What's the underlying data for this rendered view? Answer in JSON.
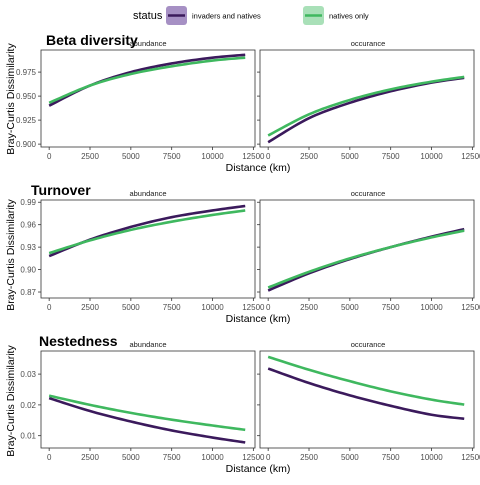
{
  "legend": {
    "title": "status",
    "items": [
      {
        "label": "invaders and natives",
        "color": "#3b1a5c",
        "fill": "#a690c4"
      },
      {
        "label": "natives only",
        "color": "#3fb85f",
        "fill": "#a9e0b8"
      }
    ]
  },
  "chart_data": [
    {
      "type": "line",
      "title": "Beta diversity",
      "ylabel": "Bray-Curtis Dissimilarity",
      "xlabel": "Distance (km)",
      "x_ticks": [
        0,
        2500,
        5000,
        7500,
        10000,
        12500
      ],
      "xlim": [
        -500,
        12600
      ],
      "panels": [
        {
          "strip": "abundance",
          "ylim": [
            0.897,
            0.998
          ],
          "y_ticks": [
            0.9,
            0.925,
            0.95,
            0.975
          ],
          "y_tick_labels": [
            "0.900",
            "0.925",
            "0.950",
            "0.975"
          ],
          "series": [
            {
              "name": "invaders and natives",
              "x": [
                0,
                2500,
                5000,
                7500,
                10000,
                12000
              ],
              "y": [
                0.94,
                0.961,
                0.975,
                0.984,
                0.99,
                0.993
              ]
            },
            {
              "name": "natives only",
              "x": [
                0,
                2500,
                5000,
                7500,
                10000,
                12000
              ],
              "y": [
                0.943,
                0.961,
                0.973,
                0.981,
                0.987,
                0.99
              ]
            }
          ]
        },
        {
          "strip": "occurance",
          "ylim": [
            0.897,
            0.998
          ],
          "y_ticks": [
            0.9,
            0.925,
            0.95,
            0.975
          ],
          "series": [
            {
              "name": "invaders and natives",
              "x": [
                0,
                2500,
                5000,
                7500,
                10000,
                12000
              ],
              "y": [
                0.902,
                0.927,
                0.943,
                0.955,
                0.964,
                0.969
              ]
            },
            {
              "name": "natives only",
              "x": [
                0,
                2500,
                5000,
                7500,
                10000,
                12000
              ],
              "y": [
                0.909,
                0.931,
                0.946,
                0.957,
                0.965,
                0.97
              ]
            }
          ]
        }
      ]
    },
    {
      "type": "line",
      "title": "Turnover",
      "ylabel": "Bray-Curtis Dissimilarity",
      "xlabel": "Distance (km)",
      "x_ticks": [
        0,
        2500,
        5000,
        7500,
        10000,
        12500
      ],
      "xlim": [
        -500,
        12600
      ],
      "panels": [
        {
          "strip": "abundance",
          "ylim": [
            0.862,
            0.993
          ],
          "y_ticks": [
            0.87,
            0.9,
            0.93,
            0.96,
            0.99
          ],
          "y_tick_labels": [
            "0.87",
            "0.90",
            "0.93",
            "0.96",
            "0.99"
          ],
          "series": [
            {
              "name": "invaders and natives",
              "x": [
                0,
                2500,
                5000,
                7500,
                10000,
                12000
              ],
              "y": [
                0.918,
                0.94,
                0.957,
                0.97,
                0.979,
                0.985
              ]
            },
            {
              "name": "natives only",
              "x": [
                0,
                2500,
                5000,
                7500,
                10000,
                12000
              ],
              "y": [
                0.922,
                0.939,
                0.953,
                0.964,
                0.973,
                0.979
              ]
            }
          ]
        },
        {
          "strip": "occurance",
          "ylim": [
            0.862,
            0.993
          ],
          "y_ticks": [
            0.87,
            0.9,
            0.93,
            0.96,
            0.99
          ],
          "series": [
            {
              "name": "invaders and natives",
              "x": [
                0,
                2500,
                5000,
                7500,
                10000,
                12000
              ],
              "y": [
                0.872,
                0.895,
                0.914,
                0.93,
                0.944,
                0.954
              ]
            },
            {
              "name": "natives only",
              "x": [
                0,
                2500,
                5000,
                7500,
                10000,
                12000
              ],
              "y": [
                0.876,
                0.897,
                0.915,
                0.93,
                0.943,
                0.952
              ]
            }
          ]
        }
      ]
    },
    {
      "type": "line",
      "title": "Nestedness",
      "ylabel": "Bray-Curtis Dissimilarity",
      "xlabel": "Distance (km)",
      "x_ticks": [
        0,
        2500,
        5000,
        7500,
        10000,
        12500
      ],
      "xlim": [
        -500,
        12600
      ],
      "panels": [
        {
          "strip": "abundance",
          "ylim": [
            0.006,
            0.0375
          ],
          "y_ticks": [
            0.01,
            0.02,
            0.03
          ],
          "y_tick_labels": [
            "0.01",
            "0.02",
            "0.03"
          ],
          "series": [
            {
              "name": "invaders and natives",
              "x": [
                0,
                2500,
                5000,
                7500,
                10000,
                12000
              ],
              "y": [
                0.0222,
                0.018,
                0.0146,
                0.0117,
                0.0094,
                0.0078
              ]
            },
            {
              "name": "natives only",
              "x": [
                0,
                2500,
                5000,
                7500,
                10000,
                12000
              ],
              "y": [
                0.023,
                0.02,
                0.0174,
                0.0152,
                0.0133,
                0.0119
              ]
            }
          ]
        },
        {
          "strip": "occurance",
          "ylim": [
            0.006,
            0.0375
          ],
          "y_ticks": [
            0.01,
            0.02,
            0.03
          ],
          "series": [
            {
              "name": "invaders and natives",
              "x": [
                0,
                2500,
                5000,
                7500,
                10000,
                12000
              ],
              "y": [
                0.0318,
                0.0271,
                0.0231,
                0.0197,
                0.0168,
                0.0155
              ]
            },
            {
              "name": "natives only",
              "x": [
                0,
                2500,
                5000,
                7500,
                10000,
                12000
              ],
              "y": [
                0.0356,
                0.0314,
                0.0277,
                0.0244,
                0.0217,
                0.0201
              ]
            }
          ]
        }
      ]
    }
  ]
}
